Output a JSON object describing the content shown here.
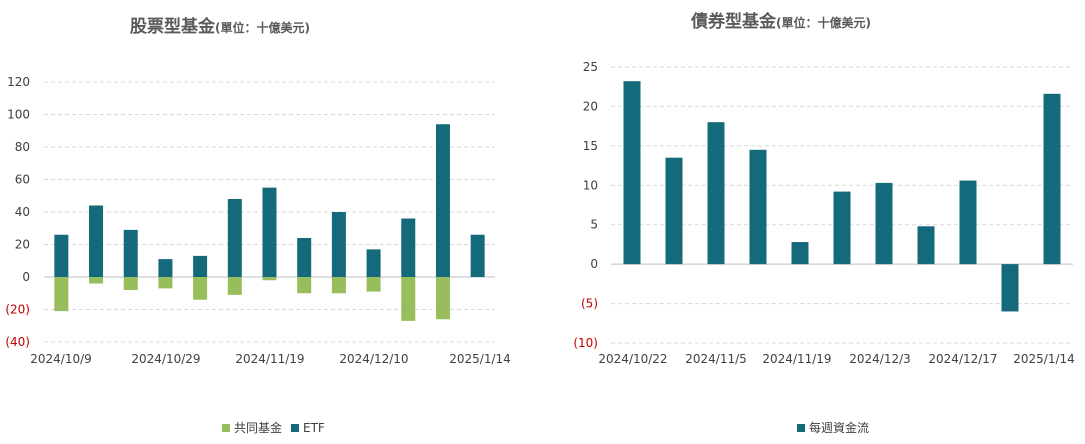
{
  "colors": {
    "etf": "#14697a",
    "mutual_fund": "#98bd5d",
    "bond": "#14697a",
    "axis_text": "#404040",
    "negative_tick": "#c00000",
    "title": "#595959",
    "grid": "#d9d9d9"
  },
  "chart_data": [
    {
      "type": "bar",
      "stacked": true,
      "title": "股票型基金",
      "subtitle": "(單位：十億美元)",
      "ylim": [
        -40,
        120
      ],
      "yticks": [
        -40,
        -20,
        0,
        20,
        40,
        60,
        80,
        100,
        120
      ],
      "ytick_labels": [
        "(40)",
        "(20)",
        "0",
        "20",
        "40",
        "60",
        "80",
        "100",
        "120"
      ],
      "xtick_labels": [
        "2024/10/9",
        "2024/10/29",
        "2024/11/19",
        "2024/12/10",
        "2025/1/14"
      ],
      "grid": true,
      "legend_position": "bottom",
      "series": [
        {
          "name": "共同基金",
          "color_key": "mutual_fund",
          "values": [
            -21,
            -4,
            -8,
            -7,
            -14,
            -11,
            -2,
            -10,
            -10,
            -9,
            -27,
            -26,
            0
          ]
        },
        {
          "name": "ETF",
          "color_key": "etf",
          "values": [
            26,
            44,
            29,
            11,
            13,
            48,
            55,
            24,
            40,
            17,
            36,
            94,
            26
          ]
        }
      ]
    },
    {
      "type": "bar",
      "title": "債券型基金",
      "subtitle": "(單位：十億美元)",
      "ylim": [
        -10,
        25
      ],
      "yticks": [
        -10,
        -5,
        0,
        5,
        10,
        15,
        20,
        25
      ],
      "ytick_labels": [
        "(10)",
        "(5)",
        "0",
        "5",
        "10",
        "15",
        "20",
        "25"
      ],
      "xtick_labels": [
        "2024/10/22",
        "2024/11/5",
        "2024/11/19",
        "2024/12/3",
        "2024/12/17",
        "2025/1/14"
      ],
      "grid": true,
      "legend_position": "bottom",
      "series": [
        {
          "name": "每週資金流",
          "color_key": "bond",
          "values": [
            23.2,
            13.5,
            18.0,
            14.5,
            2.8,
            9.2,
            10.3,
            4.8,
            10.6,
            -6.0,
            21.6
          ]
        }
      ]
    }
  ]
}
